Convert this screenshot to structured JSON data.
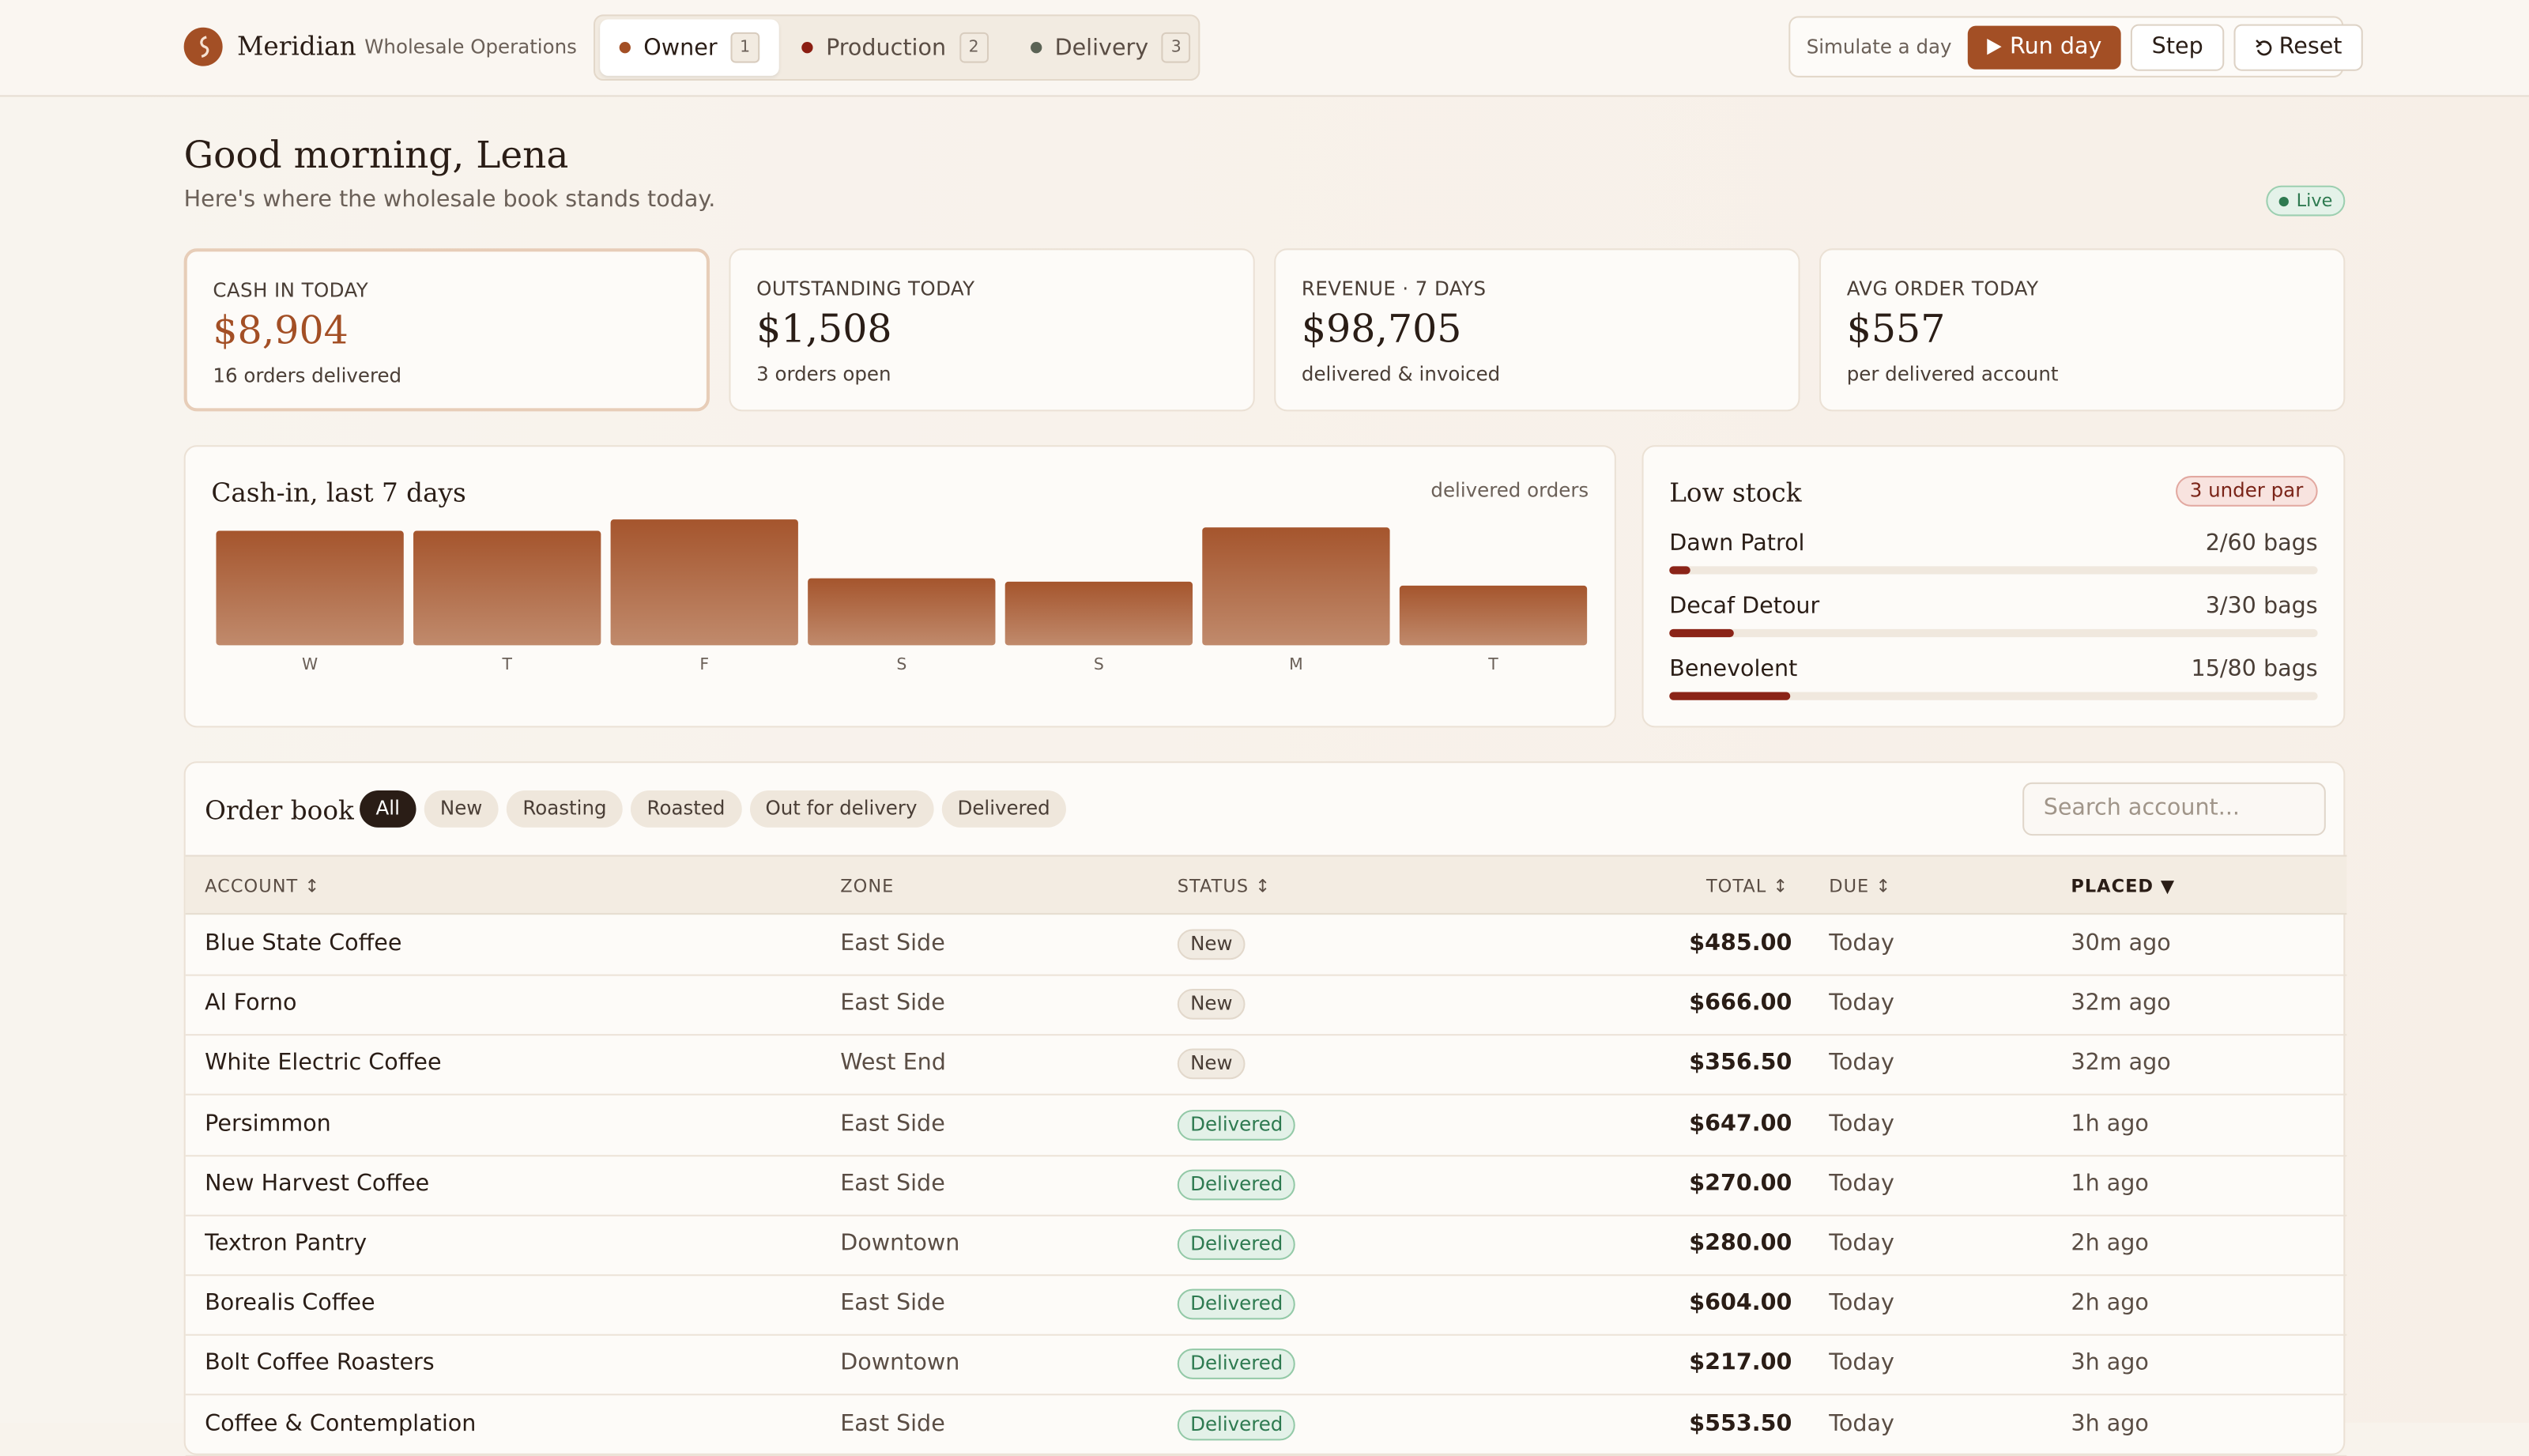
{
  "header": {
    "brand": "Meridian",
    "subtitle": "Wholesale Operations",
    "tabs": [
      {
        "label": "Owner",
        "count": "1",
        "color": "#a34f25"
      },
      {
        "label": "Production",
        "count": "2",
        "color": "#8b1e12"
      },
      {
        "label": "Delivery",
        "count": "3",
        "color": "#5b6355"
      }
    ],
    "simulate_label": "Simulate a day",
    "buttons": {
      "run": "Run day",
      "step": "Step",
      "reset": "Reset"
    }
  },
  "greeting": {
    "title": "Good morning, Lena",
    "subtitle": "Here's where the wholesale book stands today.",
    "status": "Live"
  },
  "kpis": [
    {
      "label": "CASH IN TODAY",
      "value": "$8,904",
      "note": "16 orders delivered"
    },
    {
      "label": "OUTSTANDING TODAY",
      "value": "$1,508",
      "note": "3 orders open"
    },
    {
      "label": "REVENUE · 7 DAYS",
      "value": "$98,705",
      "note": "delivered & invoiced"
    },
    {
      "label": "AVG ORDER TODAY",
      "value": "$557",
      "note": "per delivered account"
    }
  ],
  "chart_data": {
    "type": "bar",
    "title": "Cash-in, last 7 days",
    "subtitle": "delivered orders",
    "categories": [
      "W",
      "T",
      "F",
      "S",
      "S",
      "M",
      "T"
    ],
    "values": [
      17100,
      17100,
      18800,
      10000,
      9500,
      17600,
      8904
    ],
    "color": "#a5552d"
  },
  "low_stock": {
    "title": "Low stock",
    "badge": "3 under par",
    "items": [
      {
        "name": "Dawn Patrol",
        "label": "2/60 bags",
        "value": 2,
        "par": 60
      },
      {
        "name": "Decaf Detour",
        "label": "3/30 bags",
        "value": 3,
        "par": 30
      },
      {
        "name": "Benevolent",
        "label": "15/80 bags",
        "value": 15,
        "par": 80
      }
    ]
  },
  "order_book": {
    "title": "Order book",
    "filters": [
      "All",
      "New",
      "Roasting",
      "Roasted",
      "Out for delivery",
      "Delivered"
    ],
    "search_placeholder": "Search account...",
    "columns": [
      "ACCOUNT ↕",
      "ZONE",
      "STATUS ↕",
      "TOTAL ↕",
      "DUE ↕",
      "PLACED ▼"
    ],
    "rows": [
      [
        "Blue State Coffee",
        "East Side",
        "New",
        "$485.00",
        "Today",
        "30m ago"
      ],
      [
        "Al Forno",
        "East Side",
        "New",
        "$666.00",
        "Today",
        "32m ago"
      ],
      [
        "White Electric Coffee",
        "West End",
        "New",
        "$356.50",
        "Today",
        "32m ago"
      ],
      [
        "Persimmon",
        "East Side",
        "Delivered",
        "$647.00",
        "Today",
        "1h ago"
      ],
      [
        "New Harvest Coffee",
        "East Side",
        "Delivered",
        "$270.00",
        "Today",
        "1h ago"
      ],
      [
        "Textron Pantry",
        "Downtown",
        "Delivered",
        "$280.00",
        "Today",
        "2h ago"
      ],
      [
        "Borealis Coffee",
        "East Side",
        "Delivered",
        "$604.00",
        "Today",
        "2h ago"
      ],
      [
        "Bolt Coffee Roasters",
        "Downtown",
        "Delivered",
        "$217.00",
        "Today",
        "3h ago"
      ],
      [
        "Coffee & Contemplation",
        "East Side",
        "Delivered",
        "$553.50",
        "Today",
        "3h ago"
      ]
    ]
  }
}
